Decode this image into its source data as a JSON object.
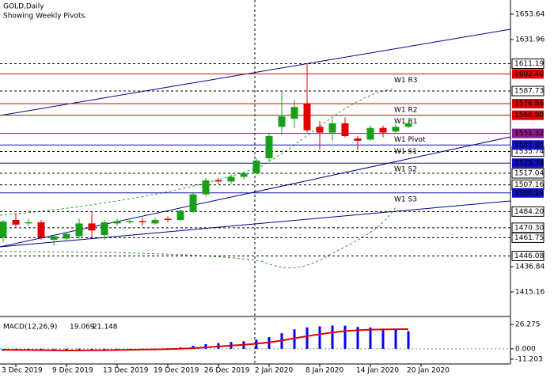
{
  "chart_data": {
    "type": "candlestick",
    "title": "GOLD,Daily",
    "subtitle": "Showing Weekly Pivots.",
    "categories": [
      null,
      "3 Dec 2019",
      null,
      null,
      null,
      "9 Dec 2019",
      null,
      null,
      null,
      "13 Dec 2019",
      null,
      null,
      null,
      "19 Dec 2019",
      null,
      null,
      null,
      "26 Dec 2019",
      null,
      null,
      null,
      "2 Jan 2020",
      null,
      null,
      null,
      "8 Jan 2020",
      null,
      null,
      null,
      "14 Jan 2020",
      null,
      null,
      null,
      "20 Jan 2020"
    ],
    "open": [
      1462,
      1477,
      1474,
      1475,
      1460,
      1461,
      1463,
      1474,
      1464,
      1474,
      1475,
      1476,
      1474,
      1478,
      1477,
      1484,
      1499,
      1511,
      1510,
      1514,
      1517,
      1530,
      1557,
      1564,
      1577,
      1557,
      1552,
      1560,
      1547,
      1546,
      1556,
      1553,
      1557,
      null
    ],
    "high": [
      1477,
      1483,
      1478,
      1477,
      1464,
      1467,
      1478,
      1484,
      1477,
      1478,
      1477,
      1479,
      1479,
      1480,
      1486,
      1501,
      1513,
      1513,
      1516,
      1518,
      1530,
      1551,
      1588,
      1580,
      1611,
      1562,
      1564,
      1565,
      1549,
      1558,
      1558,
      1559,
      1561,
      null
    ],
    "low": [
      1458,
      1470,
      1472,
      1460,
      1455,
      1459,
      1461,
      1461,
      1460,
      1472,
      1474,
      1472,
      1473,
      1475,
      1476,
      1483,
      1497,
      1508,
      1508,
      1512,
      1516,
      1527,
      1550,
      1556,
      1552,
      1537,
      1545,
      1548,
      1537,
      1545,
      1548,
      1551,
      1556,
      null
    ],
    "close": [
      1475.6,
      1473,
      1475,
      1462,
      1463,
      1465,
      1474,
      1468,
      1475,
      1476,
      1476,
      1475,
      1477,
      1477,
      1485,
      1499,
      1511,
      1510,
      1514,
      1517,
      1528,
      1549,
      1566,
      1574,
      1554,
      1552,
      1560,
      1549,
      1545,
      1556,
      1552,
      1557,
      1560,
      null
    ],
    "up_color": "#17a017",
    "down_color": "#e00000",
    "ylim": [
      1395.46,
      1665.87
    ],
    "yticks": [
      1653.64,
      1631.96,
      1436.84,
      1415.16
    ],
    "levels": [
      1611.19,
      1587.73,
      1535.74,
      1517.04,
      1507.16,
      {
        "value": 1484.2,
        "label": "1484.20"
      },
      {
        "value": 1470.3,
        "label": "1470.30"
      },
      1461.75,
      1446.08
    ],
    "pivots": [
      {
        "name": "W1 R3",
        "value": 1602.4,
        "value_label": "1602.40",
        "color": "#e00000"
      },
      {
        "name": "W1 R2",
        "value": 1576.86,
        "value_label": "1576.86",
        "color": "#e00000"
      },
      {
        "name": "W1 R1",
        "value": 1566.9,
        "value_label": "1566.90",
        "color": "#e00000"
      },
      {
        "name": "W1 Pivot",
        "value": 1551.32,
        "value_label": "1551.32",
        "color": "#8b1a8b"
      },
      {
        "name": "W1 S1",
        "value": 1541.36,
        "value_label": "1541.36",
        "color": "#1010c0"
      },
      {
        "name": "W1 S2",
        "value": 1525.78,
        "value_label": "1525.78",
        "color": "#1010c0"
      },
      {
        "name": "W1 S3",
        "value": 1500.24,
        "value_label": "1500.24",
        "color": "#1010c0"
      }
    ],
    "macd": {
      "name": "MACD(12,26,9)",
      "main": [
        -2.1,
        -1.8,
        -1.6,
        -1.9,
        -2.2,
        -2.3,
        -1.6,
        -1.4,
        -0.9,
        -0.5,
        -0.2,
        0.1,
        0.4,
        0.6,
        1.5,
        3.2,
        5.0,
        6.2,
        7.3,
        8.1,
        9.8,
        12.6,
        16.8,
        20.9,
        23.1,
        24.2,
        25.1,
        24.9,
        23.6,
        23.0,
        21.8,
        20.4,
        19.069,
        null
      ],
      "signal": [
        -1.0,
        -1.2,
        -1.3,
        -1.4,
        -1.6,
        -1.7,
        -1.7,
        -1.6,
        -1.5,
        -1.3,
        -1.1,
        -0.8,
        -0.6,
        -0.3,
        0.1,
        0.7,
        1.6,
        2.5,
        3.5,
        4.4,
        5.5,
        6.9,
        8.9,
        11.3,
        13.6,
        15.7,
        17.6,
        19.1,
        20.0,
        20.6,
        20.9,
        21.1,
        21.148,
        null
      ],
      "main_label": "19.069",
      "signal_label": "21.148",
      "main_color": "#0000ff",
      "signal_color": "#e00000",
      "ylim": [
        -14.6,
        33.1
      ],
      "yticks": [
        26.275,
        {
          "value": 0,
          "label": "0.000"
        },
        -11.203
      ]
    }
  }
}
